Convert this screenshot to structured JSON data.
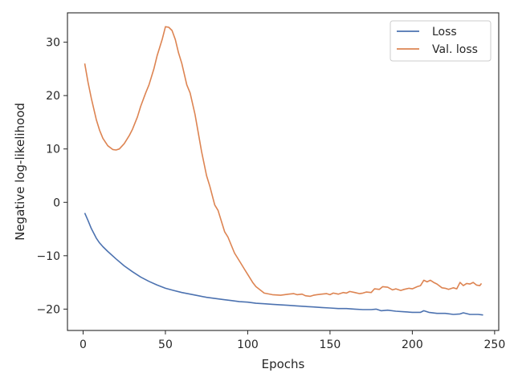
{
  "chart_data": {
    "type": "line",
    "title": "",
    "xlabel": "Epochs",
    "ylabel": "Negative log-likelihood",
    "xlim": [
      -9.5,
      252.5
    ],
    "ylim": [
      -24,
      35.5
    ],
    "xticks": [
      0,
      50,
      100,
      150,
      200,
      250
    ],
    "yticks": [
      -20,
      -10,
      0,
      10,
      20,
      30
    ],
    "grid": false,
    "legend_position": "top-right",
    "series": [
      {
        "name": "Loss",
        "color": "#4c72b0",
        "x": [
          1,
          3,
          5,
          8,
          10,
          12,
          15,
          20,
          25,
          30,
          35,
          40,
          45,
          50,
          55,
          60,
          65,
          70,
          75,
          80,
          85,
          90,
          95,
          100,
          105,
          110,
          115,
          120,
          125,
          130,
          135,
          140,
          145,
          150,
          155,
          160,
          165,
          170,
          175,
          178,
          181,
          185,
          190,
          195,
          200,
          205,
          207,
          210,
          215,
          220,
          225,
          229,
          231,
          235,
          240,
          243
        ],
        "y": [
          -2.0,
          -3.4,
          -4.9,
          -6.7,
          -7.6,
          -8.3,
          -9.2,
          -10.6,
          -11.9,
          -13.0,
          -14.0,
          -14.8,
          -15.5,
          -16.1,
          -16.5,
          -16.9,
          -17.2,
          -17.5,
          -17.8,
          -18.0,
          -18.2,
          -18.4,
          -18.6,
          -18.7,
          -18.9,
          -19.0,
          -19.1,
          -19.2,
          -19.3,
          -19.4,
          -19.5,
          -19.6,
          -19.7,
          -19.8,
          -19.9,
          -19.9,
          -20.0,
          -20.1,
          -20.1,
          -20.0,
          -20.3,
          -20.2,
          -20.4,
          -20.5,
          -20.6,
          -20.6,
          -20.3,
          -20.6,
          -20.8,
          -20.8,
          -21.0,
          -20.9,
          -20.7,
          -21.0,
          -21.0,
          -21.1
        ]
      },
      {
        "name": "Val. loss",
        "color": "#dd8452",
        "x": [
          1,
          3,
          5,
          8,
          10,
          12,
          15,
          18,
          20,
          22,
          25,
          28,
          30,
          33,
          35,
          38,
          40,
          43,
          45,
          48,
          50,
          52,
          54,
          56,
          58,
          60,
          63,
          65,
          68,
          70,
          72,
          75,
          77,
          80,
          82,
          84,
          86,
          88,
          90,
          92,
          95,
          98,
          100,
          103,
          105,
          108,
          110,
          115,
          120,
          125,
          128,
          130,
          133,
          135,
          138,
          140,
          142,
          145,
          148,
          150,
          152,
          155,
          158,
          160,
          162,
          165,
          168,
          170,
          172,
          175,
          177,
          180,
          182,
          185,
          188,
          190,
          193,
          195,
          198,
          200,
          203,
          205,
          207,
          209,
          211,
          213,
          215,
          218,
          220,
          222,
          225,
          227,
          229,
          231,
          233,
          235,
          237,
          239,
          241,
          242
        ],
        "y": [
          26.0,
          22.5,
          19.5,
          15.5,
          13.5,
          12.0,
          10.6,
          9.9,
          9.8,
          10.0,
          11.0,
          12.5,
          13.7,
          16.0,
          18.0,
          20.5,
          22.0,
          25.0,
          27.5,
          30.5,
          32.9,
          32.8,
          32.2,
          30.5,
          28.0,
          26.0,
          22.0,
          20.5,
          16.5,
          13.0,
          9.5,
          5.0,
          3.0,
          -0.5,
          -1.5,
          -3.5,
          -5.5,
          -6.5,
          -8.0,
          -9.5,
          -11.0,
          -12.5,
          -13.5,
          -15.0,
          -15.8,
          -16.5,
          -17.0,
          -17.3,
          -17.4,
          -17.2,
          -17.1,
          -17.3,
          -17.2,
          -17.5,
          -17.6,
          -17.4,
          -17.3,
          -17.2,
          -17.1,
          -17.3,
          -17.0,
          -17.2,
          -16.9,
          -17.0,
          -16.7,
          -16.9,
          -17.1,
          -17.0,
          -16.8,
          -16.9,
          -16.2,
          -16.3,
          -15.8,
          -15.9,
          -16.4,
          -16.2,
          -16.5,
          -16.3,
          -16.1,
          -16.2,
          -15.8,
          -15.6,
          -14.6,
          -14.9,
          -14.6,
          -15.0,
          -15.3,
          -16.0,
          -16.1,
          -16.3,
          -16.0,
          -16.2,
          -15.0,
          -15.6,
          -15.2,
          -15.3,
          -15.0,
          -15.5,
          -15.6,
          -15.2
        ]
      }
    ]
  }
}
